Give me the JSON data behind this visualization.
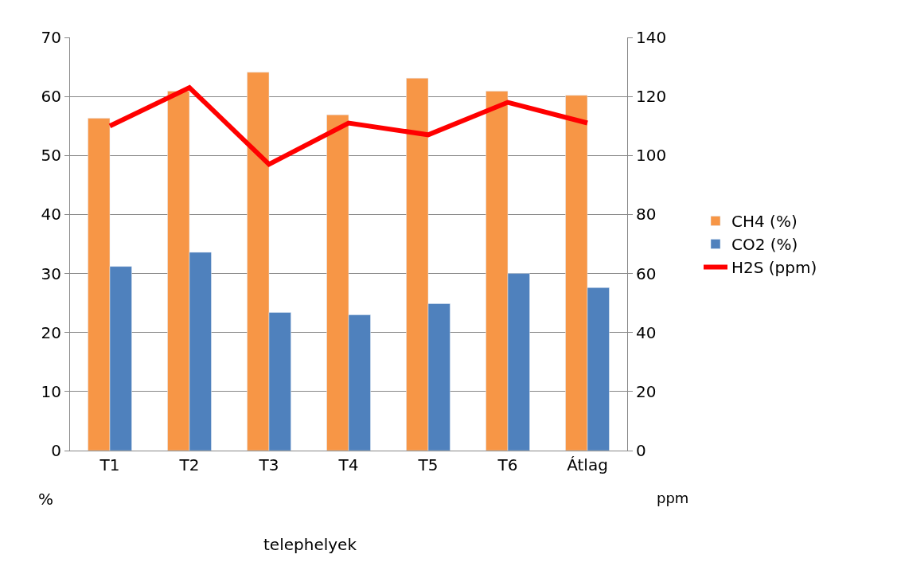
{
  "chart_data": {
    "type": "bar",
    "xlabel": "telephelyek",
    "ylabel": "%",
    "y2label": "ppm",
    "categories": [
      "T1",
      "T2",
      "T3",
      "T4",
      "T5",
      "T6",
      "Átlag"
    ],
    "series": [
      {
        "name": "CH4 (%)",
        "color": "#f79646",
        "values": [
          56.3,
          60.9,
          64.1,
          56.9,
          63.1,
          60.9,
          60.2
        ]
      },
      {
        "name": "CO2 (%)",
        "color": "#4f81bd",
        "values": [
          31.2,
          33.6,
          23.4,
          23.0,
          24.9,
          30.0,
          27.6
        ]
      },
      {
        "name": "H2S (ppm)",
        "type": "line",
        "axis": "y2",
        "color": "#ff0000",
        "marker": "none",
        "line_style": "solid",
        "values": [
          110,
          123,
          97,
          111,
          107,
          118,
          111
        ]
      }
    ],
    "ylim": [
      0,
      70
    ],
    "yticks": [
      0,
      10,
      20,
      30,
      40,
      50,
      60,
      70
    ],
    "y2lim": [
      0,
      140
    ],
    "y2ticks": [
      0,
      20,
      40,
      60,
      80,
      100,
      120,
      140
    ],
    "grid": "y",
    "legend": "right"
  }
}
